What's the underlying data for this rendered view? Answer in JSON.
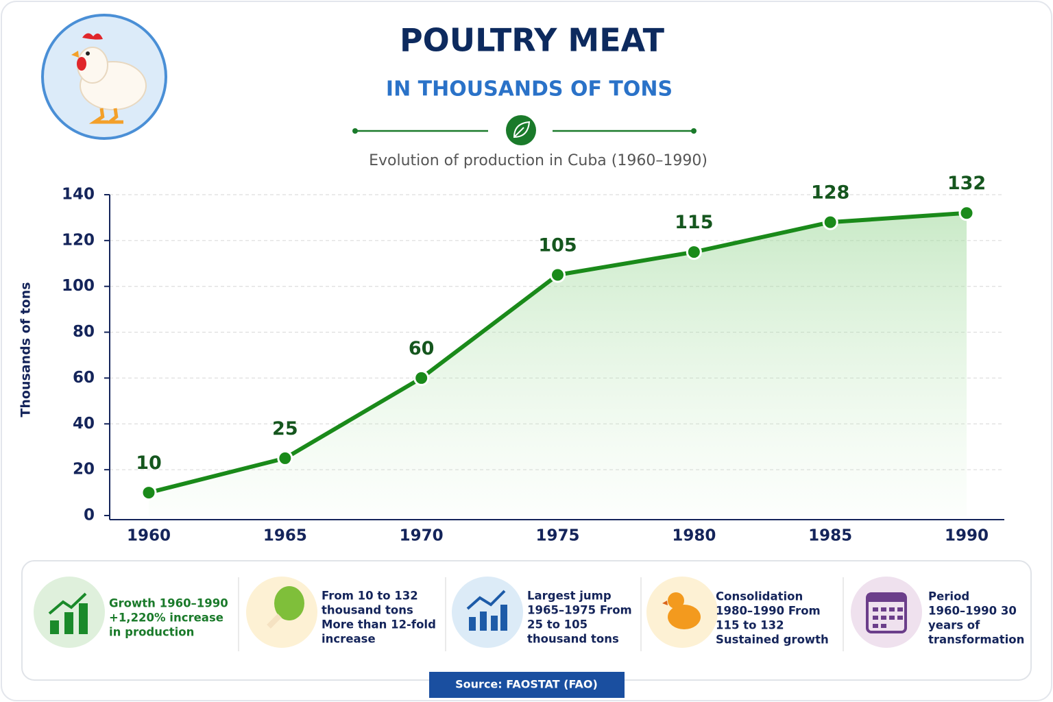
{
  "chart_data": {
    "type": "line",
    "title": "POULTRY MEAT",
    "subtitle": "IN THOUSANDS OF TONS",
    "description": "Evolution of production in Cuba (1960–1990)",
    "y_label": "Thousands of tons",
    "categories": [
      "1960",
      "1965",
      "1970",
      "1975",
      "1980",
      "1985",
      "1990"
    ],
    "values": [
      10,
      25,
      60,
      105,
      115,
      128,
      132
    ],
    "color": "#1a8a1a",
    "ylim": [
      0,
      140
    ],
    "yticks": [
      0,
      20,
      40,
      60,
      80,
      100,
      120,
      140
    ],
    "grid": true
  },
  "cards": [
    {
      "lines": [
        "Growth 1960–1990",
        "+1,220% increase",
        "in production"
      ]
    },
    {
      "lines": [
        "From 10 to 132",
        "thousand tons",
        "More than 12-fold",
        "increase"
      ]
    },
    {
      "lines": [
        "Largest jump",
        "1965–1975 From",
        "25 to 105",
        "thousand tons"
      ]
    },
    {
      "lines": [
        "Consolidation",
        "1980–1990 From",
        "115 to 132",
        "Sustained growth"
      ]
    },
    {
      "lines": [
        "Period",
        "1960–1990 30",
        "years of",
        "transformation"
      ]
    }
  ],
  "source": "Source: FAOSTAT (FAO)"
}
